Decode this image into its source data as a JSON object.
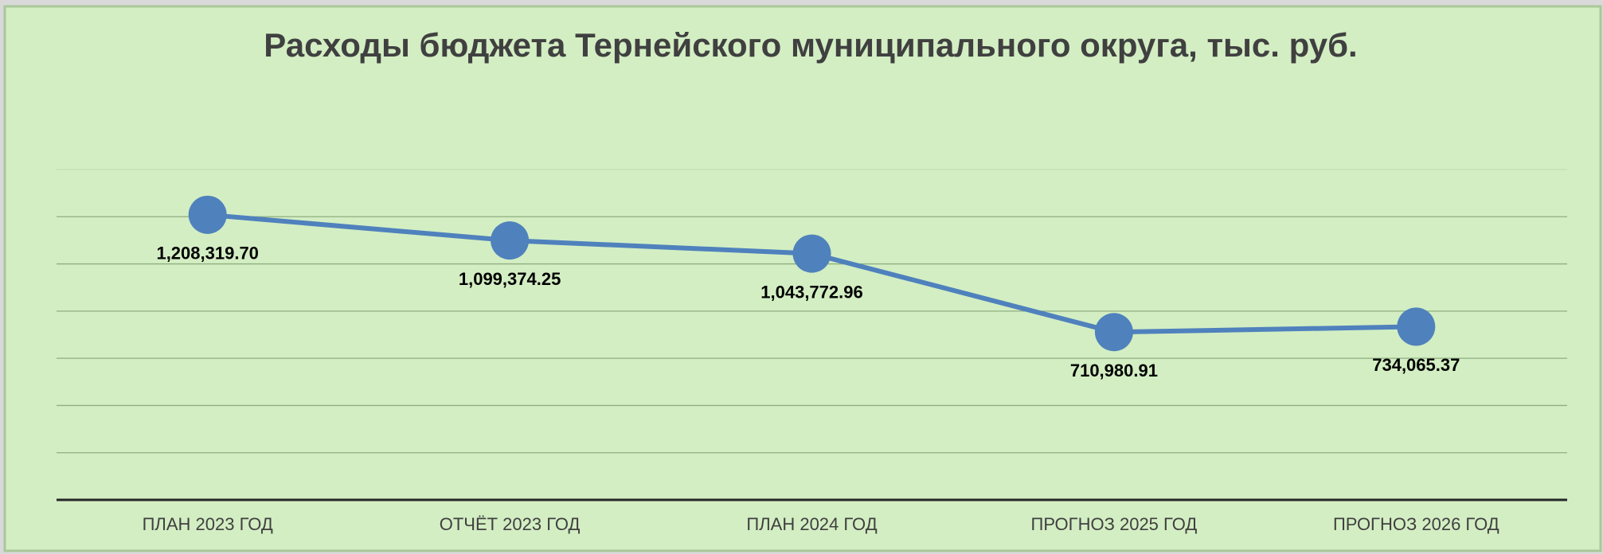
{
  "chart_data": {
    "type": "line",
    "title": "Расходы бюджета Тернейского муниципального округа, тыс. руб.",
    "categories": [
      "ПЛАН 2023 ГОД",
      "ОТЧЁТ 2023 ГОД",
      "ПЛАН 2024 ГОД",
      "ПРОГНОЗ 2025 ГОД",
      "ПРОГНОЗ 2026 ГОД"
    ],
    "values": [
      1208319.7,
      1099374.25,
      1043772.96,
      710980.91,
      734065.37
    ],
    "value_labels": [
      "1,208,319.70",
      "1,099,374.25",
      "1,043,772.96",
      "710,980.91",
      "734,065.37"
    ],
    "color": "#4f81bd",
    "ylim": [
      0,
      1400000
    ],
    "yticks": [
      0,
      200000,
      400000,
      600000,
      800000,
      1000000,
      1200000,
      1400000
    ],
    "grid": true
  }
}
